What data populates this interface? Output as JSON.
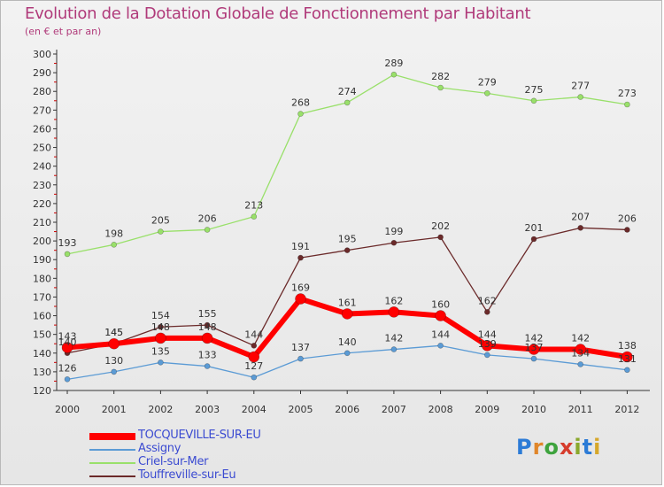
{
  "header": {
    "title": "Evolution de la Dotation Globale de Fonctionnement par Habitant",
    "subtitle": "(en € et par an)"
  },
  "logo": {
    "text": "Proxiti",
    "letter_colors": [
      "#2c7bd6",
      "#e0862a",
      "#3da33d",
      "#d63c2c",
      "#8aa82c",
      "#2c7bd6",
      "#d6a82c"
    ]
  },
  "chart_data": {
    "type": "line",
    "title": "Evolution de la Dotation Globale de Fonctionnement par Habitant",
    "subtitle": "(en € et par an)",
    "xlabel": "",
    "ylabel": "",
    "x": [
      "2000",
      "2001",
      "2002",
      "2003",
      "2004",
      "2005",
      "2006",
      "2007",
      "2008",
      "2009",
      "2010",
      "2011",
      "2012"
    ],
    "ylim": [
      120,
      300
    ],
    "yticks": [
      120,
      130,
      140,
      150,
      160,
      170,
      180,
      190,
      200,
      210,
      220,
      230,
      240,
      250,
      260,
      270,
      280,
      290,
      300
    ],
    "grid": false,
    "legend_position": "bottom-left",
    "series": [
      {
        "name": "TOCQUEVILLE-SUR-EU",
        "color": "#ff0000",
        "values": [
          143,
          145,
          148,
          148,
          138,
          169,
          161,
          162,
          160,
          144,
          142,
          142,
          138
        ],
        "labels": [
          "143",
          "145",
          "148",
          "148",
          "",
          "169",
          "161",
          "162",
          "160",
          "144",
          "142",
          "142",
          "138"
        ]
      },
      {
        "name": "Assigny",
        "color": "#5b9bd5",
        "values": [
          126,
          130,
          135,
          133,
          127,
          137,
          140,
          142,
          144,
          139,
          137,
          134,
          131
        ],
        "labels": [
          "126",
          "130",
          "135",
          "133",
          "127",
          "137",
          "140",
          "142",
          "144",
          "139",
          "137",
          "134",
          "131"
        ]
      },
      {
        "name": "Criel-sur-Mer",
        "color": "#99e06a",
        "values": [
          193,
          198,
          205,
          206,
          213,
          268,
          274,
          289,
          282,
          279,
          275,
          277,
          273
        ],
        "labels": [
          "193",
          "198",
          "205",
          "206",
          "213",
          "268",
          "274",
          "289",
          "282",
          "279",
          "275",
          "277",
          "273"
        ]
      },
      {
        "name": "Touffreville-sur-Eu",
        "color": "#6b2a2a",
        "values": [
          140,
          145,
          154,
          155,
          144,
          191,
          195,
          199,
          202,
          162,
          201,
          207,
          206
        ],
        "labels": [
          "140",
          "145",
          "154",
          "155",
          "144",
          "191",
          "195",
          "199",
          "202",
          "162",
          "201",
          "207",
          "206"
        ]
      }
    ]
  }
}
